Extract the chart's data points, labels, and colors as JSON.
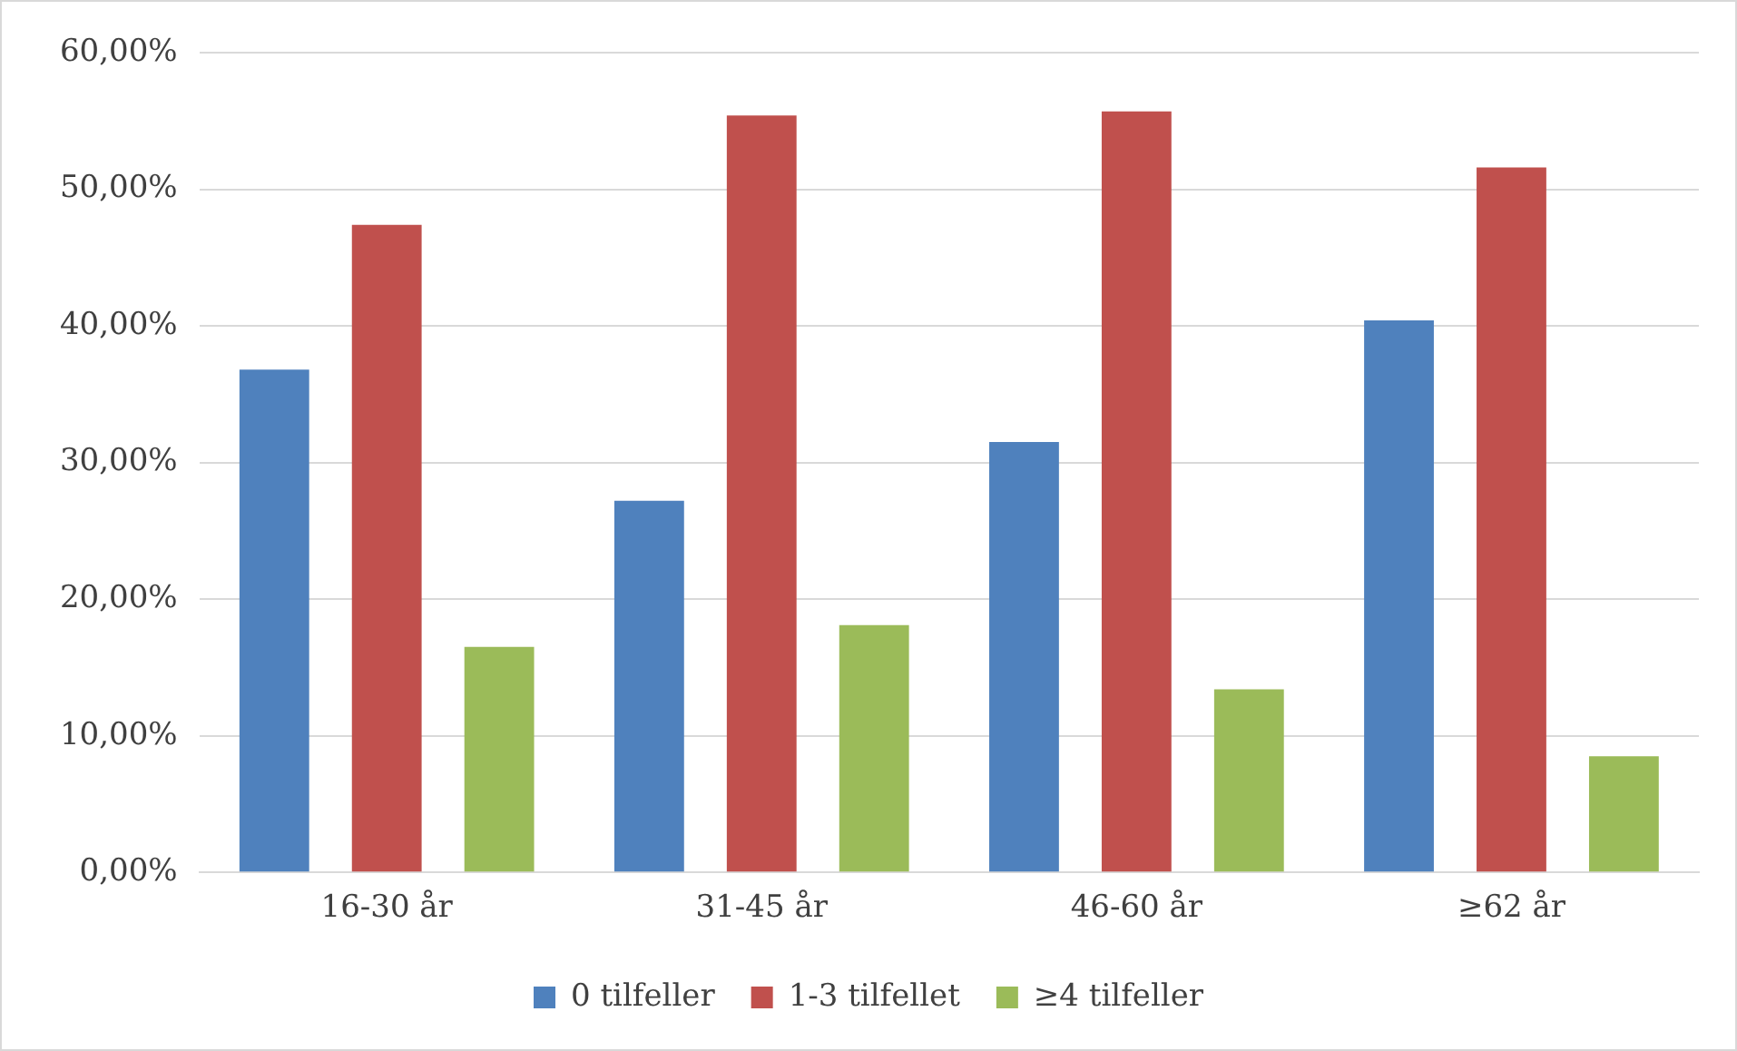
{
  "chart_data": {
    "type": "bar",
    "categories": [
      "16-30 år",
      "31-45 år",
      "46-60 år",
      "≥62 år"
    ],
    "series": [
      {
        "name": "0 tilfeller",
        "color": "#4f81bd",
        "values": [
          36.8,
          27.2,
          31.5,
          40.4
        ]
      },
      {
        "name": "1-3 tilfellet",
        "color": "#c0504d",
        "values": [
          47.4,
          55.4,
          55.7,
          51.6
        ]
      },
      {
        "name": "≥4 tilfeller",
        "color": "#9bbb59",
        "values": [
          16.5,
          18.1,
          13.4,
          8.5
        ]
      }
    ],
    "ylim": [
      0,
      60
    ],
    "yticks": [
      {
        "value": 0,
        "label": "0,00%"
      },
      {
        "value": 10,
        "label": "10,00%"
      },
      {
        "value": 20,
        "label": "20,00%"
      },
      {
        "value": 30,
        "label": "30,00%"
      },
      {
        "value": 40,
        "label": "40,00%"
      },
      {
        "value": 50,
        "label": "50,00%"
      },
      {
        "value": 60,
        "label": "60,00%"
      }
    ],
    "grid": "y",
    "legend": "bottom"
  }
}
